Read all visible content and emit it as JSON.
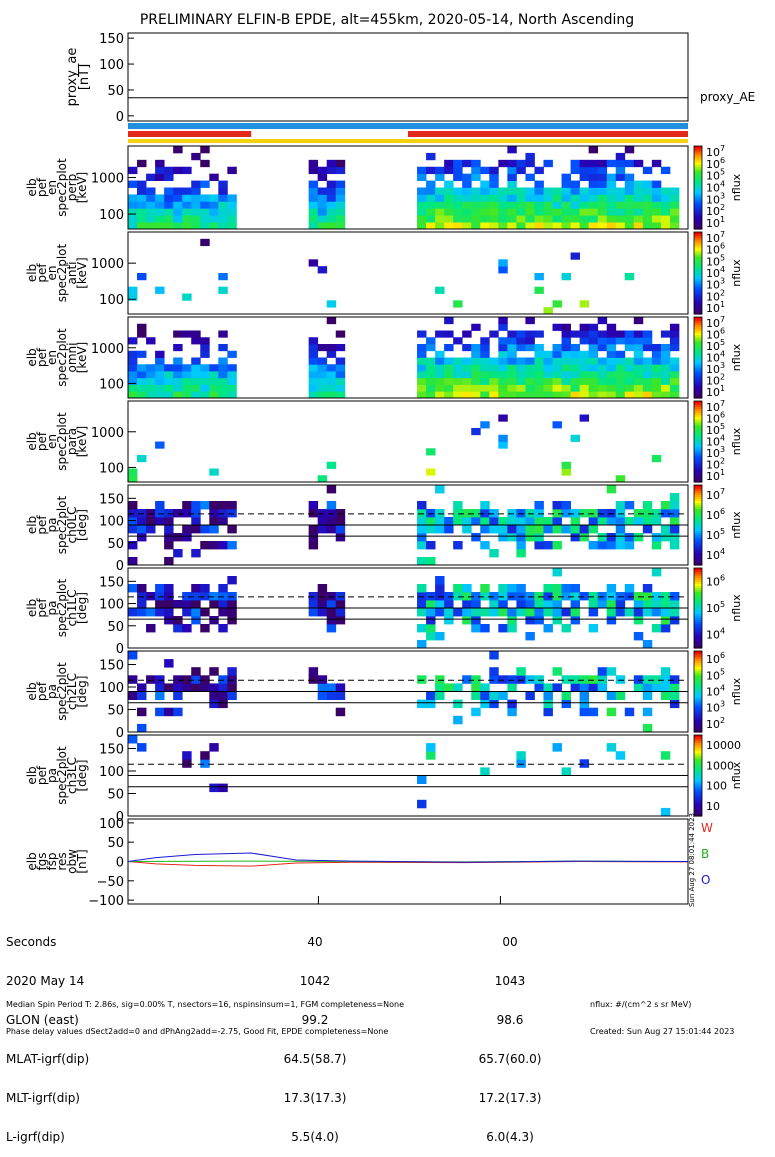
{
  "title": "PRELIMINARY ELFIN-B EPDE, alt=455km, 2020-05-14, North Ascending",
  "colors": {
    "axis": "#000000",
    "bar_blue": "#1f8fe0",
    "bar_red": "#e3281c",
    "bar_yellow": "#f5d20f",
    "bw_w": "#e3281c",
    "bw_b": "#1fb51f",
    "bw_o": "#1a1ad2"
  },
  "chart_data": [
    {
      "type": "line",
      "panel": "proxy_ae",
      "ylabel": "proxy_ae\n[nT]",
      "ylim": [
        -10,
        160
      ],
      "yticks": [
        "0",
        "50",
        "100",
        "150"
      ],
      "legend": "proxy_AE",
      "series": [
        {
          "name": "proxy_AE",
          "values": [
            35,
            35
          ]
        }
      ]
    },
    {
      "type": "bar",
      "panel": "status-bars",
      "rows": [
        "blue",
        "red",
        "yellow"
      ],
      "red_segments": [
        [
          0.0,
          0.22
        ],
        [
          0.5,
          1.0
        ]
      ]
    },
    {
      "type": "heatmap",
      "panel": "pef-en-perp",
      "ylabel": [
        "elb",
        "pef",
        "en",
        "spec2plot",
        "perp",
        "[keV]"
      ],
      "yticks": [
        "100",
        "1000"
      ],
      "zlabel": "nflux",
      "ztick_labels": [
        "10^1",
        "10^2",
        "10^3",
        "10^4",
        "10^5",
        "10^6",
        "10^7"
      ]
    },
    {
      "type": "heatmap",
      "panel": "pef-en-anti",
      "ylabel": [
        "elb",
        "pef",
        "en",
        "spec2plot",
        "anti",
        "[keV]"
      ],
      "yticks": [
        "100",
        "1000"
      ],
      "zlabel": "nflux",
      "ztick_labels": [
        "10^1",
        "10^2",
        "10^3",
        "10^4",
        "10^5",
        "10^6",
        "10^7"
      ]
    },
    {
      "type": "heatmap",
      "panel": "pef-en-omni",
      "ylabel": [
        "elb",
        "pef",
        "en",
        "spec2plot",
        "omni",
        "[keV]"
      ],
      "yticks": [
        "100",
        "1000"
      ],
      "zlabel": "nflux",
      "ztick_labels": [
        "10^1",
        "10^2",
        "10^3",
        "10^4",
        "10^5",
        "10^6",
        "10^7"
      ]
    },
    {
      "type": "heatmap",
      "panel": "pef-en-para",
      "ylabel": [
        "elb",
        "pef",
        "en",
        "spec2plot",
        "para",
        "[keV]"
      ],
      "yticks": [
        "100",
        "1000"
      ],
      "zlabel": "nflux",
      "ztick_labels": [
        "10^1",
        "10^2",
        "10^3",
        "10^4",
        "10^5",
        "10^6",
        "10^7"
      ]
    },
    {
      "type": "heatmap",
      "panel": "pa-ch0",
      "ylabel": [
        "elb",
        "pef",
        "pa",
        "spec2plot",
        "ch0LC",
        "[deg]"
      ],
      "yticks": [
        "0",
        "50",
        "100",
        "150"
      ],
      "ylim": [
        0,
        180
      ],
      "zlabel": "nflux",
      "ztick_labels": [
        "10^4",
        "10^5",
        "10^6",
        "10^7"
      ]
    },
    {
      "type": "heatmap",
      "panel": "pa-ch1",
      "ylabel": [
        "elb",
        "pef",
        "pa",
        "spec2plot",
        "ch1LC",
        "[deg]"
      ],
      "yticks": [
        "0",
        "50",
        "100",
        "150"
      ],
      "ylim": [
        0,
        180
      ],
      "zlabel": "nflux",
      "ztick_labels": [
        "10^4",
        "10^5",
        "10^6"
      ]
    },
    {
      "type": "heatmap",
      "panel": "pa-ch2",
      "ylabel": [
        "elb",
        "pef",
        "pa",
        "spec2plot",
        "ch2LC",
        "[deg]"
      ],
      "yticks": [
        "0",
        "50",
        "100",
        "150"
      ],
      "ylim": [
        0,
        180
      ],
      "zlabel": "nflux",
      "ztick_labels": [
        "10^2",
        "10^3",
        "10^4",
        "10^5",
        "10^6"
      ]
    },
    {
      "type": "heatmap",
      "panel": "pa-ch3",
      "ylabel": [
        "elb",
        "pef",
        "pa",
        "spec2plot",
        "ch3LC",
        "[deg]"
      ],
      "yticks": [
        "0",
        "50",
        "100",
        "150"
      ],
      "ylim": [
        0,
        180
      ],
      "zlabel": "nflux",
      "ztick_labels": [
        "10",
        "100",
        "1000",
        "10000"
      ]
    },
    {
      "type": "line",
      "panel": "bw",
      "ylabel": [
        "elb",
        "fgs",
        "fsp",
        "res",
        "obw",
        "[nT]"
      ],
      "ylim": [
        -110,
        110
      ],
      "yticks": [
        "−100",
        "−50",
        "0",
        "50",
        "100"
      ],
      "legend": [
        "W",
        "B",
        "O"
      ],
      "series": [
        {
          "name": "W",
          "x": [
            0,
            0.05,
            0.12,
            0.22,
            0.3,
            0.4,
            0.6,
            0.8,
            1.0
          ],
          "values": [
            0,
            -6,
            -10,
            -12,
            -4,
            -2,
            -3,
            0,
            -1
          ]
        },
        {
          "name": "B",
          "x": [
            0,
            0.2,
            0.4,
            0.6,
            0.8,
            1.0
          ],
          "values": [
            0,
            1,
            0,
            -1,
            1,
            0
          ]
        },
        {
          "name": "O",
          "x": [
            0,
            0.05,
            0.12,
            0.22,
            0.3,
            0.4,
            0.6,
            0.8,
            1.0
          ],
          "values": [
            0,
            10,
            18,
            22,
            4,
            1,
            -2,
            1,
            0
          ]
        }
      ]
    }
  ],
  "side_stamp": "Sun Aug 27 08:01:44 2023",
  "bottom": {
    "labels": [
      "Seconds",
      "2020 May 14",
      "GLON (east)",
      "MLAT-igrf(dip)",
      "MLT-igrf(dip)",
      "L-igrf(dip)"
    ],
    "col1": [
      "40",
      "1042",
      "99.2",
      "64.5(58.7)",
      "17.3(17.3)",
      "5.5(4.0)"
    ],
    "col2": [
      "00",
      "1043",
      "98.6",
      "65.7(60.0)",
      "17.2(17.3)",
      "6.0(4.3)"
    ]
  },
  "footer": {
    "line1": "Median Spin Period T: 2.86s, sig=0.00% T, nsectors=16, nspinsinsum=1, FGM completeness=None",
    "line2": "Phase delay values dSect2add=0 and dPhAng2add=-2.75, Good Fit, EPDE completeness=None",
    "units": "nflux: #/(cm^2 s sr MeV)",
    "created": "Created: Sun Aug 27 15:01:44 2023"
  }
}
